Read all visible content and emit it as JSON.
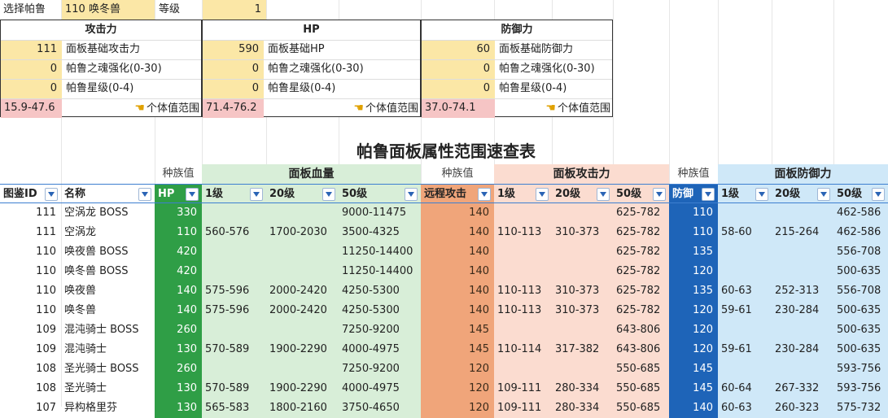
{
  "top": {
    "select_label": "选择帕鲁",
    "select_value": "110 唤冬兽",
    "level_label": "等级",
    "level_value": "1"
  },
  "panels": [
    {
      "title": "攻击力",
      "base_value": "111",
      "base_label": "面板基础攻击力",
      "soul_value": "0",
      "soul_label": "帕鲁之魂强化(0-30)",
      "star_value": "0",
      "star_label": "帕鲁星级(0-4)",
      "range": "15.9-47.6",
      "iv_label": "个体值范围"
    },
    {
      "title": "HP",
      "base_value": "590",
      "base_label": "面板基础HP",
      "soul_value": "0",
      "soul_label": "帕鲁之魂强化(0-30)",
      "star_value": "0",
      "star_label": "帕鲁星级(0-4)",
      "range": "71.4-76.2",
      "iv_label": "个体值范围"
    },
    {
      "title": "防御力",
      "base_value": "60",
      "base_label": "面板基础防御力",
      "soul_value": "0",
      "soul_label": "帕鲁之魂强化(0-30)",
      "star_value": "0",
      "star_label": "帕鲁星级(0-4)",
      "range": "37.0-74.1",
      "iv_label": "个体值范围"
    }
  ],
  "table_title": "帕鲁面板属性范围速查表",
  "group_headers": {
    "species1": "种族值",
    "hp_group": "面板血量",
    "species2": "种族值",
    "atk_group": "面板攻击力",
    "species3": "种族值",
    "def_group": "面板防御力"
  },
  "columns": [
    "图鉴ID",
    "名称",
    "HP",
    "1级",
    "20级",
    "50级",
    "远程攻击",
    "1级",
    "20级",
    "50级",
    "防御",
    "1级",
    "20级",
    "50级"
  ],
  "rows": [
    [
      "111",
      "空涡龙 BOSS",
      "330",
      "",
      "",
      "9000-11475",
      "140",
      "",
      "",
      "625-782",
      "110",
      "",
      "",
      "462-586"
    ],
    [
      "111",
      "空涡龙",
      "110",
      "560-576",
      "1700-2030",
      "3500-4325",
      "140",
      "110-113",
      "310-373",
      "625-782",
      "110",
      "58-60",
      "215-264",
      "462-586"
    ],
    [
      "110",
      "唤夜兽 BOSS",
      "420",
      "",
      "",
      "11250-14400",
      "140",
      "",
      "",
      "625-782",
      "135",
      "",
      "",
      "556-708"
    ],
    [
      "110",
      "唤冬兽 BOSS",
      "420",
      "",
      "",
      "11250-14400",
      "140",
      "",
      "",
      "625-782",
      "120",
      "",
      "",
      "500-635"
    ],
    [
      "110",
      "唤夜兽",
      "140",
      "575-596",
      "2000-2420",
      "4250-5300",
      "140",
      "110-113",
      "310-373",
      "625-782",
      "135",
      "60-63",
      "252-313",
      "556-708"
    ],
    [
      "110",
      "唤冬兽",
      "140",
      "575-596",
      "2000-2420",
      "4250-5300",
      "140",
      "110-113",
      "310-373",
      "625-782",
      "120",
      "59-61",
      "230-284",
      "500-635"
    ],
    [
      "109",
      "混沌骑士 BOSS",
      "260",
      "",
      "",
      "7250-9200",
      "145",
      "",
      "",
      "643-806",
      "120",
      "",
      "",
      "500-635"
    ],
    [
      "109",
      "混沌骑士",
      "130",
      "570-589",
      "1900-2290",
      "4000-4975",
      "145",
      "110-114",
      "317-382",
      "643-806",
      "120",
      "59-61",
      "230-284",
      "500-635"
    ],
    [
      "108",
      "圣光骑士 BOSS",
      "260",
      "",
      "",
      "7250-9200",
      "120",
      "",
      "",
      "550-685",
      "145",
      "",
      "",
      "593-756"
    ],
    [
      "108",
      "圣光骑士",
      "130",
      "570-589",
      "1900-2290",
      "4000-4975",
      "120",
      "109-111",
      "280-334",
      "550-685",
      "145",
      "60-64",
      "267-332",
      "593-756"
    ],
    [
      "107",
      "异构格里芬",
      "130",
      "565-583",
      "1800-2160",
      "3750-4650",
      "120",
      "109-111",
      "280-334",
      "550-685",
      "140",
      "60-63",
      "260-323",
      "575-732"
    ]
  ],
  "colors": {
    "yellow": "#fbe7a6",
    "pink": "#f6c5c5",
    "hp_green": "#2f9e46",
    "atk_orange": "#f0a57a",
    "def_blue": "#1e64b8"
  }
}
